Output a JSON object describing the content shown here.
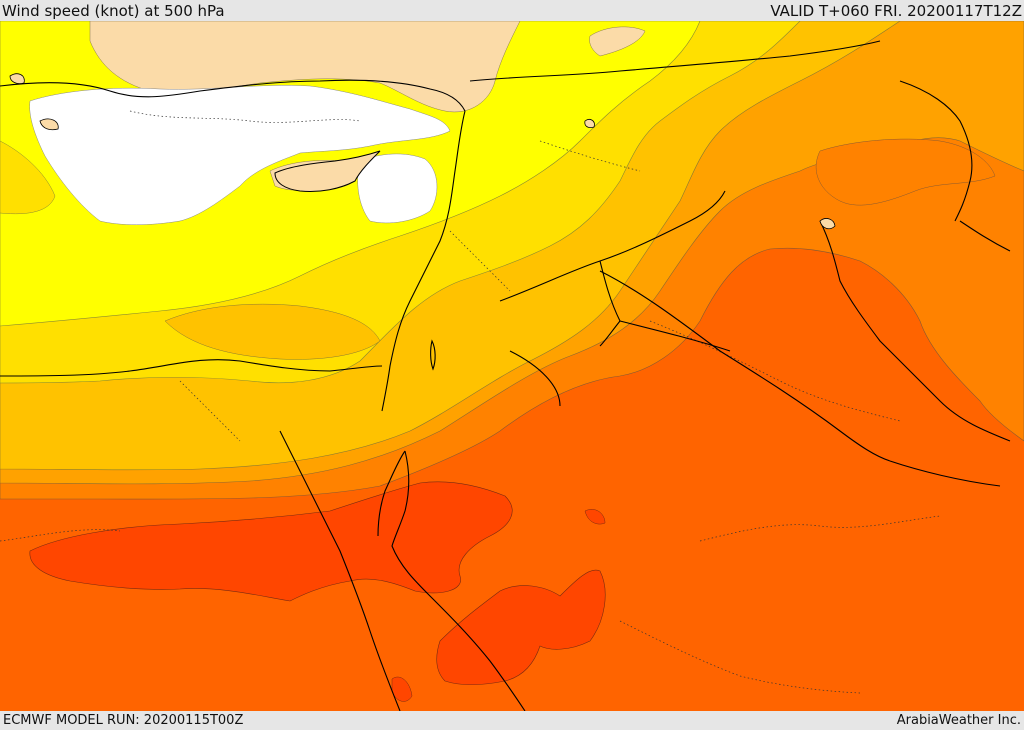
{
  "header": {
    "title": "Wind speed (knot) at 500 hPa",
    "valid": "VALID T+060 FRI. 20200117T12Z"
  },
  "footer": {
    "model_run": "ECMWF MODEL RUN: 20200115T00Z",
    "credit": "ArabiaWeather Inc."
  },
  "colors": {
    "white": "#ffffff",
    "wheat": "#fbdba8",
    "yellow": "#ffff00",
    "gold_light": "#ffe000",
    "gold": "#ffc200",
    "amber": "#ffa200",
    "orange": "#ff8200",
    "orange_red": "#ff6400",
    "red_orange": "#ff4600",
    "land": "#000000"
  }
}
